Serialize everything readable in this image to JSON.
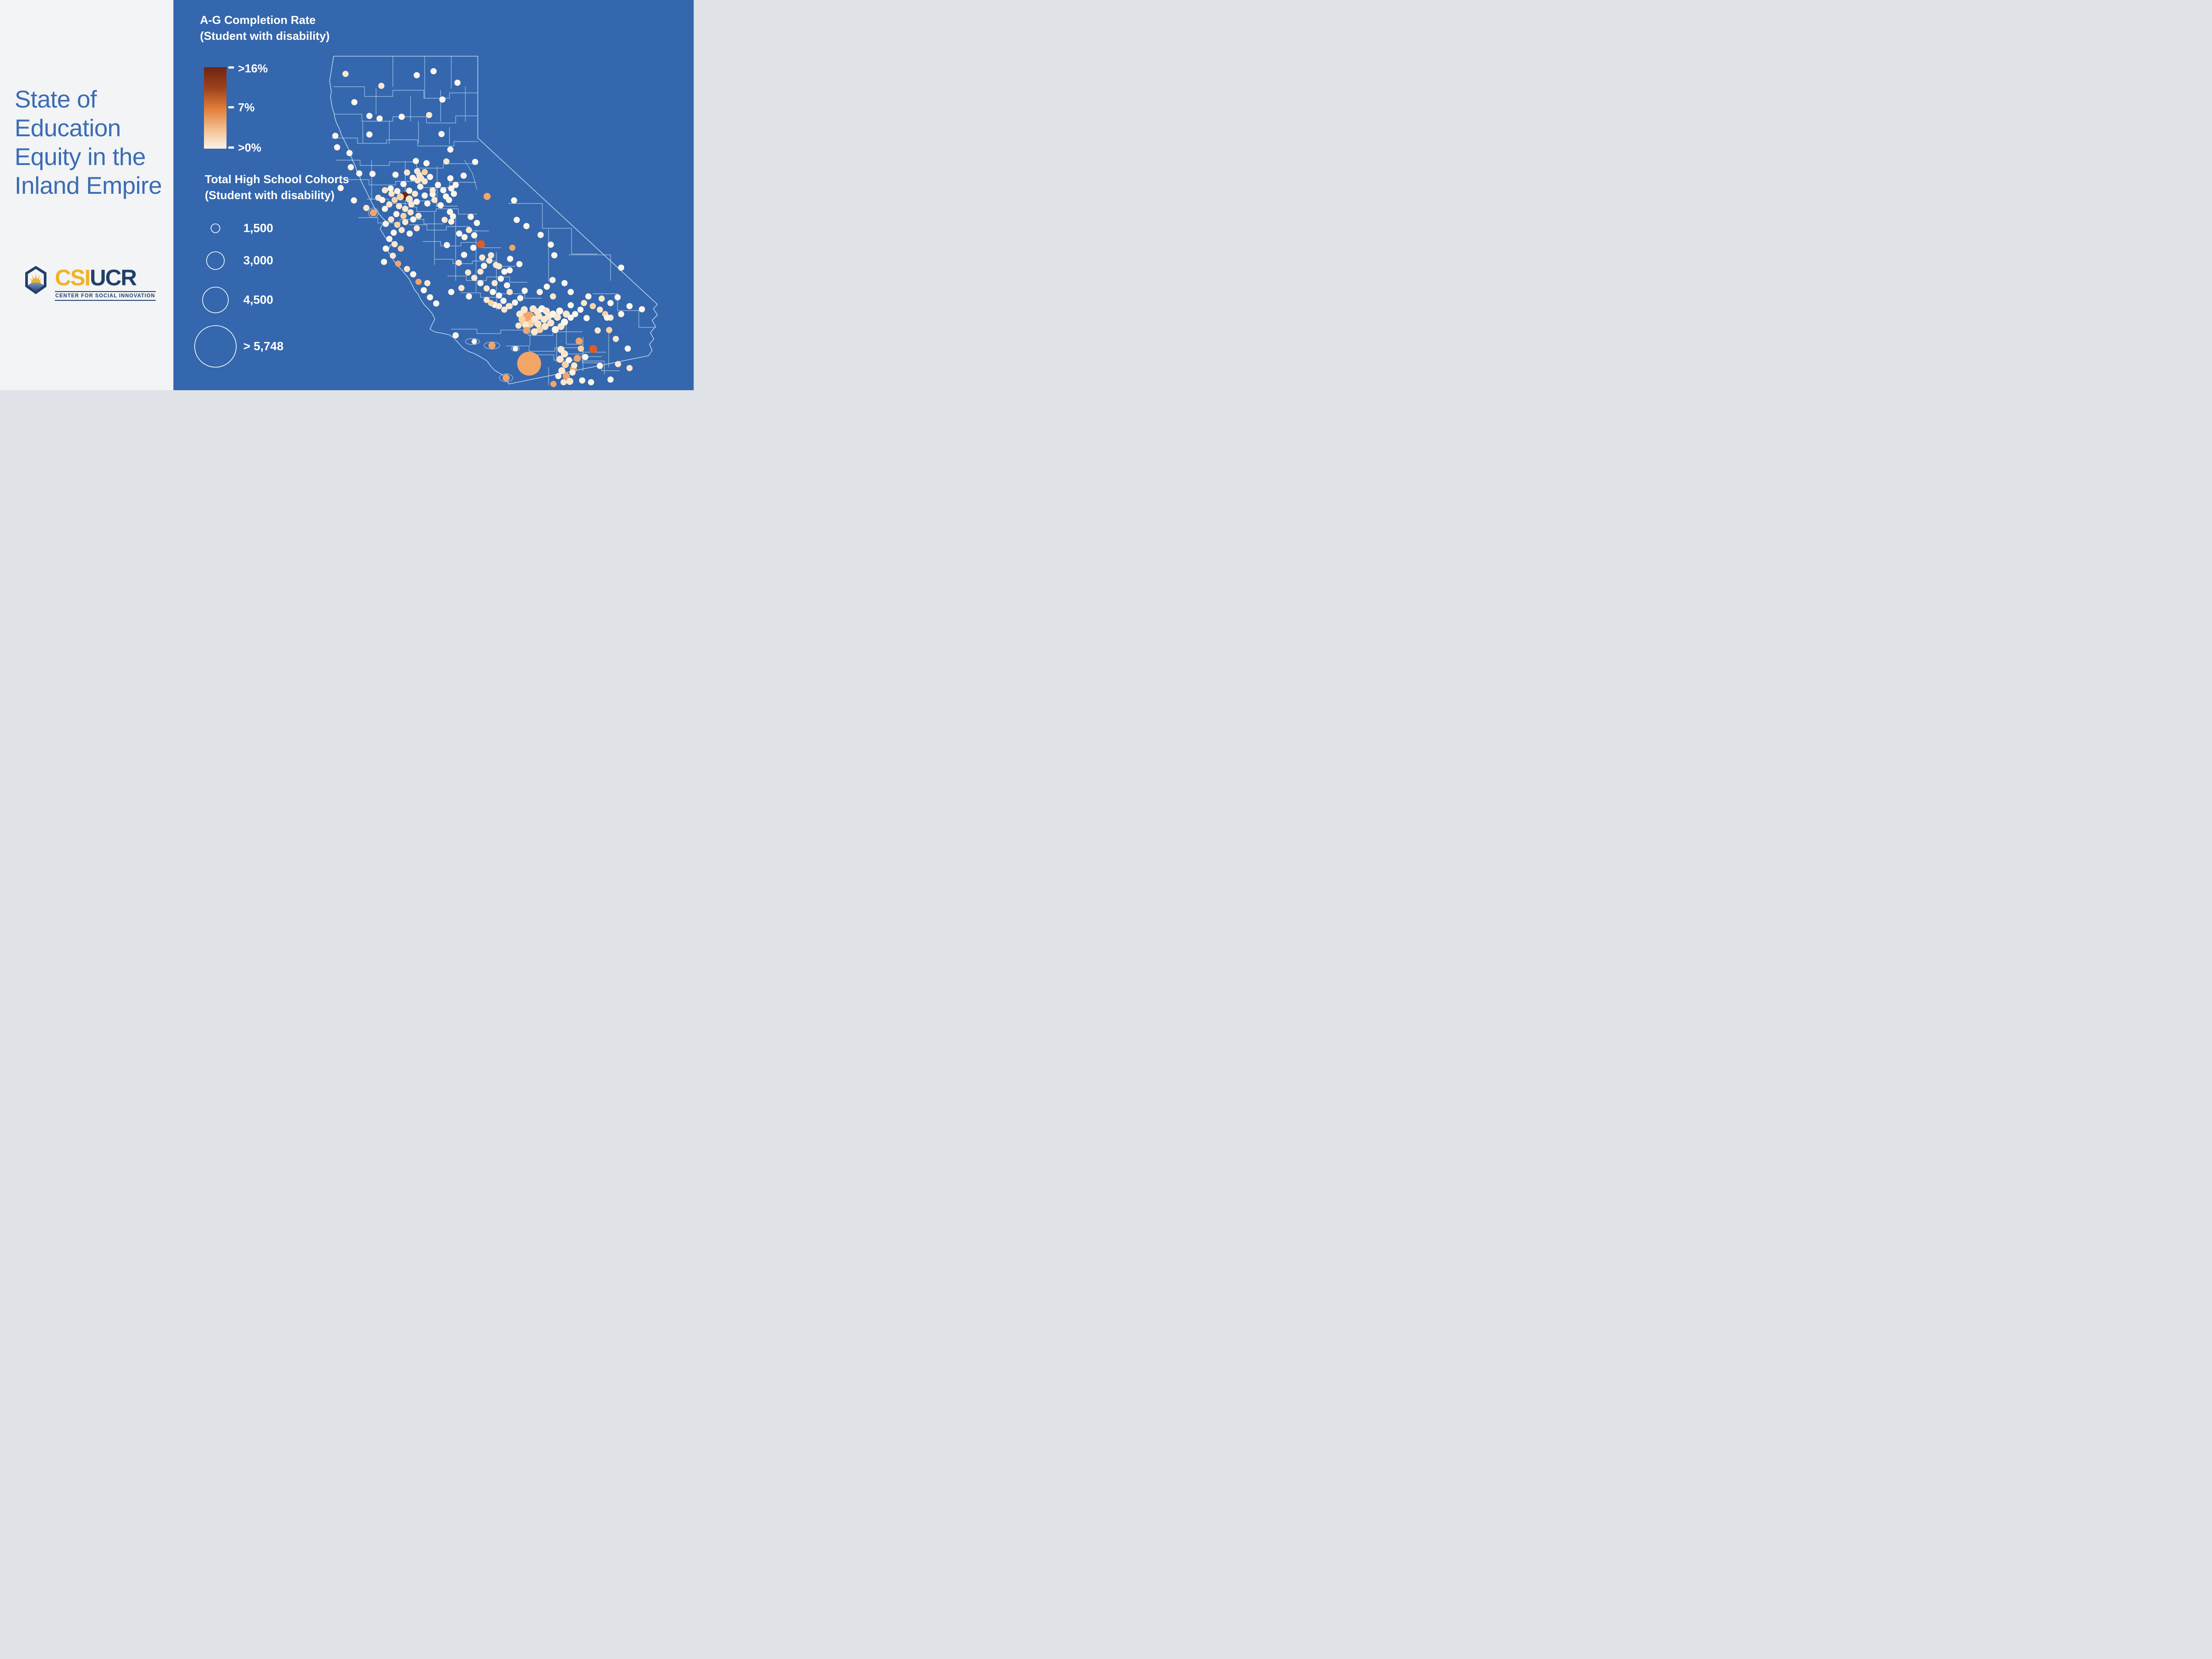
{
  "left_panel": {
    "title_lines": [
      "State of",
      "Education",
      "Equity in the",
      "Inland Empire"
    ],
    "logo": {
      "acronym_gold": "CSI",
      "acronym_navy": "UCR",
      "subtitle": "CENTER FOR SOCIAL INNOVATION"
    }
  },
  "legend_rate": {
    "title_line1": "A-G Completion Rate",
    "title_line2": "(Student with disability)",
    "tick_labels": [
      ">16%",
      "7%",
      ">0%"
    ],
    "gradient_stops": [
      "#6f2412",
      "#9c401b",
      "#e07b35",
      "#f3bc8a",
      "#fdf3e6"
    ]
  },
  "legend_size": {
    "title_line1": "Total High School Cohorts",
    "title_line2": "(Student with disability)",
    "items": [
      {
        "label": "1,500",
        "r": 10
      },
      {
        "label": "3,000",
        "r": 20
      },
      {
        "label": "4,500",
        "r": 29
      },
      {
        "label": "> 5,748",
        "r": 47
      }
    ]
  },
  "colors": {
    "left_bg": "#f2f4f5",
    "map_bg": "#3467ad",
    "title_text": "#3b6cb5",
    "boundary_line": "#a6c6e7",
    "legend_text": "#ffffff",
    "logo_gold": "#f0b325",
    "logo_navy": "#223f6a"
  },
  "map": {
    "dot_colors": {
      "w": "#fdf6ec",
      "c": "#fbe7d0",
      "p": "#f8d3a8",
      "o": "#f3a568",
      "O": "#e25c24",
      "m": "#6f2412"
    },
    "dots": [
      [
        61,
        67,
        7,
        "c"
      ],
      [
        142,
        94,
        7,
        "c"
      ],
      [
        222,
        70,
        7,
        "w"
      ],
      [
        260,
        61,
        7,
        "w"
      ],
      [
        314,
        87,
        7,
        "w"
      ],
      [
        280,
        125,
        7,
        "w"
      ],
      [
        81,
        131,
        7,
        "w"
      ],
      [
        115,
        162,
        7,
        "w"
      ],
      [
        138,
        168,
        7,
        "w"
      ],
      [
        188,
        164,
        7,
        "w"
      ],
      [
        250,
        160,
        7,
        "c"
      ],
      [
        278,
        203,
        7,
        "w"
      ],
      [
        115,
        204,
        7,
        "w"
      ],
      [
        38,
        207,
        7,
        "w"
      ],
      [
        42,
        233,
        7,
        "w"
      ],
      [
        70,
        246,
        7,
        "w"
      ],
      [
        220,
        264,
        7,
        "w"
      ],
      [
        244,
        269,
        7,
        "w"
      ],
      [
        289,
        265,
        7,
        "c"
      ],
      [
        354,
        266,
        7,
        "w"
      ],
      [
        328,
        297,
        7,
        "w"
      ],
      [
        298,
        238,
        7,
        "w"
      ],
      [
        73,
        278,
        7,
        "w"
      ],
      [
        92,
        292,
        7,
        "w"
      ],
      [
        122,
        293,
        7,
        "w"
      ],
      [
        174,
        295,
        7,
        "w"
      ],
      [
        223,
        287,
        7,
        "c"
      ],
      [
        224,
        308,
        7,
        "c"
      ],
      [
        258,
        339,
        7,
        "w"
      ],
      [
        192,
        316,
        7,
        "w"
      ],
      [
        205,
        331,
        7,
        "w"
      ],
      [
        163,
        326,
        7,
        "w"
      ],
      [
        135,
        347,
        7,
        "c"
      ],
      [
        108,
        370,
        7,
        "c"
      ],
      [
        80,
        353,
        7,
        "w"
      ],
      [
        50,
        325,
        7,
        "w"
      ],
      [
        298,
        303,
        7,
        "w"
      ],
      [
        310,
        318,
        7,
        "w"
      ],
      [
        381,
        344,
        8,
        "o"
      ],
      [
        442,
        353,
        7,
        "w"
      ],
      [
        448,
        397,
        7,
        "w"
      ],
      [
        470,
        411,
        7,
        "w"
      ],
      [
        502,
        431,
        7,
        "w"
      ],
      [
        525,
        453,
        7,
        "w"
      ],
      [
        533,
        477,
        7,
        "w"
      ],
      [
        529,
        533,
        7,
        "w"
      ],
      [
        684,
        505,
        7,
        "w"
      ],
      [
        200,
        290,
        7,
        "c"
      ],
      [
        213,
        302,
        7,
        "w"
      ],
      [
        228,
        296,
        7,
        "c"
      ],
      [
        240,
        289,
        7,
        "p"
      ],
      [
        240,
        310,
        7,
        "c"
      ],
      [
        252,
        300,
        7,
        "w"
      ],
      [
        230,
        322,
        7,
        "w"
      ],
      [
        218,
        338,
        7,
        "c"
      ],
      [
        240,
        342,
        7,
        "w"
      ],
      [
        258,
        330,
        7,
        "c"
      ],
      [
        270,
        318,
        7,
        "w"
      ],
      [
        282,
        330,
        7,
        "w"
      ],
      [
        262,
        352,
        7,
        "c"
      ],
      [
        246,
        360,
        7,
        "w"
      ],
      [
        276,
        364,
        7,
        "w"
      ],
      [
        295,
        352,
        7,
        "w"
      ],
      [
        306,
        338,
        7,
        "w"
      ],
      [
        232,
        303,
        7,
        "c"
      ],
      [
        288,
        344,
        7,
        "w"
      ],
      [
        300,
        326,
        7,
        "w"
      ],
      [
        150,
        330,
        7,
        "c"
      ],
      [
        165,
        338,
        7,
        "c"
      ],
      [
        178,
        332,
        7,
        "w"
      ],
      [
        185,
        345,
        8,
        "p"
      ],
      [
        205,
        350,
        8,
        "c"
      ],
      [
        172,
        352,
        7,
        "p"
      ],
      [
        160,
        362,
        7,
        "c"
      ],
      [
        150,
        372,
        7,
        "w"
      ],
      [
        182,
        366,
        7,
        "c"
      ],
      [
        196,
        372,
        7,
        "c"
      ],
      [
        210,
        362,
        7,
        "c"
      ],
      [
        222,
        356,
        7,
        "w"
      ],
      [
        208,
        380,
        7,
        "c"
      ],
      [
        192,
        388,
        7,
        "p"
      ],
      [
        176,
        384,
        7,
        "w"
      ],
      [
        164,
        396,
        7,
        "c"
      ],
      [
        152,
        406,
        7,
        "w"
      ],
      [
        178,
        408,
        7,
        "p"
      ],
      [
        196,
        402,
        7,
        "c"
      ],
      [
        214,
        396,
        7,
        "w"
      ],
      [
        226,
        388,
        7,
        "c"
      ],
      [
        188,
        420,
        7,
        "c"
      ],
      [
        170,
        426,
        7,
        "w"
      ],
      [
        206,
        428,
        7,
        "w"
      ],
      [
        222,
        416,
        7,
        "c"
      ],
      [
        144,
        352,
        7,
        "w"
      ],
      [
        195,
        343,
        9,
        "m"
      ],
      [
        124,
        381,
        8,
        "o"
      ],
      [
        160,
        440,
        7,
        "w"
      ],
      [
        172,
        452,
        7,
        "c"
      ],
      [
        152,
        462,
        7,
        "w"
      ],
      [
        186,
        462,
        7,
        "p"
      ],
      [
        168,
        478,
        7,
        "c"
      ],
      [
        148,
        492,
        7,
        "w"
      ],
      [
        180,
        496,
        7,
        "o"
      ],
      [
        200,
        508,
        7,
        "c"
      ],
      [
        214,
        520,
        7,
        "w"
      ],
      [
        226,
        537,
        7,
        "o"
      ],
      [
        246,
        540,
        7,
        "c"
      ],
      [
        238,
        556,
        7,
        "w"
      ],
      [
        252,
        572,
        7,
        "w"
      ],
      [
        266,
        586,
        7,
        "w"
      ],
      [
        300,
        560,
        7,
        "w"
      ],
      [
        323,
        551,
        7,
        "c"
      ],
      [
        340,
        570,
        7,
        "w"
      ],
      [
        290,
        454,
        7,
        "w"
      ],
      [
        285,
        397,
        7,
        "c"
      ],
      [
        300,
        401,
        7,
        "w"
      ],
      [
        304,
        389,
        7,
        "w"
      ],
      [
        297,
        379,
        7,
        "w"
      ],
      [
        317,
        494,
        7,
        "c"
      ],
      [
        329,
        476,
        7,
        "w"
      ],
      [
        350,
        460,
        7,
        "w"
      ],
      [
        366,
        514,
        7,
        "c"
      ],
      [
        370,
        482,
        7,
        "c"
      ],
      [
        386,
        489,
        7,
        "c"
      ],
      [
        390,
        477,
        7,
        "c"
      ],
      [
        401,
        499,
        7,
        "c"
      ],
      [
        408,
        502,
        7,
        "c"
      ],
      [
        420,
        514,
        7,
        "w"
      ],
      [
        374,
        501,
        7,
        "w"
      ],
      [
        367,
        452,
        9,
        "O"
      ],
      [
        352,
        432,
        7,
        "w"
      ],
      [
        340,
        420,
        7,
        "c"
      ],
      [
        330,
        436,
        7,
        "w"
      ],
      [
        318,
        428,
        7,
        "w"
      ],
      [
        344,
        390,
        7,
        "w"
      ],
      [
        358,
        404,
        7,
        "w"
      ],
      [
        338,
        516,
        7,
        "c"
      ],
      [
        352,
        528,
        7,
        "c"
      ],
      [
        366,
        540,
        7,
        "w"
      ],
      [
        380,
        552,
        7,
        "c"
      ],
      [
        394,
        560,
        7,
        "w"
      ],
      [
        408,
        568,
        7,
        "w"
      ],
      [
        398,
        540,
        7,
        "c"
      ],
      [
        412,
        530,
        7,
        "w"
      ],
      [
        426,
        545,
        7,
        "w"
      ],
      [
        432,
        560,
        7,
        "c"
      ],
      [
        418,
        580,
        7,
        "w"
      ],
      [
        430,
        592,
        7,
        "c"
      ],
      [
        444,
        584,
        7,
        "w"
      ],
      [
        456,
        574,
        7,
        "w"
      ],
      [
        438,
        460,
        7,
        "o"
      ],
      [
        454,
        497,
        7,
        "w"
      ],
      [
        433,
        485,
        7,
        "w"
      ],
      [
        432,
        511,
        7,
        "w"
      ],
      [
        466,
        557,
        7,
        "w"
      ],
      [
        570,
        590,
        7,
        "w"
      ],
      [
        570,
        560,
        7,
        "w"
      ],
      [
        556,
        540,
        7,
        "w"
      ],
      [
        530,
        570,
        7,
        "c"
      ],
      [
        500,
        560,
        7,
        "w"
      ],
      [
        516,
        548,
        7,
        "w"
      ],
      [
        610,
        570,
        7,
        "w"
      ],
      [
        398,
        589,
        7,
        "w"
      ],
      [
        408,
        592,
        7,
        "c"
      ],
      [
        420,
        600,
        7,
        "c"
      ],
      [
        432,
        592,
        7,
        "c"
      ],
      [
        390,
        585,
        7,
        "p"
      ],
      [
        380,
        578,
        7,
        "c"
      ],
      [
        455,
        610,
        8,
        "c"
      ],
      [
        465,
        600,
        8,
        "c"
      ],
      [
        473,
        623,
        19,
        "o"
      ],
      [
        485,
        598,
        8,
        "c"
      ],
      [
        495,
        605,
        8,
        "c"
      ],
      [
        505,
        598,
        8,
        "w"
      ],
      [
        515,
        603,
        8,
        "c"
      ],
      [
        498,
        615,
        8,
        "c"
      ],
      [
        488,
        622,
        8,
        "c"
      ],
      [
        478,
        632,
        8,
        "p"
      ],
      [
        468,
        634,
        8,
        "c"
      ],
      [
        510,
        622,
        8,
        "c"
      ],
      [
        520,
        615,
        8,
        "c"
      ],
      [
        530,
        610,
        8,
        "w"
      ],
      [
        540,
        617,
        8,
        "c"
      ],
      [
        525,
        630,
        8,
        "c"
      ],
      [
        512,
        638,
        8,
        "c"
      ],
      [
        500,
        645,
        8,
        "p"
      ],
      [
        488,
        650,
        8,
        "c"
      ],
      [
        535,
        645,
        8,
        "w"
      ],
      [
        548,
        638,
        8,
        "c"
      ],
      [
        556,
        628,
        8,
        "w"
      ],
      [
        545,
        603,
        8,
        "w"
      ],
      [
        560,
        610,
        8,
        "c"
      ],
      [
        570,
        618,
        7,
        "w"
      ],
      [
        580,
        610,
        7,
        "w"
      ],
      [
        470,
        647,
        8,
        "o"
      ],
      [
        460,
        622,
        8,
        "p"
      ],
      [
        452,
        636,
        7,
        "c"
      ],
      [
        496,
        632,
        8,
        "c"
      ],
      [
        592,
        600,
        7,
        "w"
      ],
      [
        600,
        585,
        7,
        "c"
      ],
      [
        620,
        592,
        7,
        "p"
      ],
      [
        636,
        600,
        7,
        "c"
      ],
      [
        648,
        610,
        7,
        "p"
      ],
      [
        660,
        618,
        7,
        "c"
      ],
      [
        684,
        610,
        7,
        "w"
      ],
      [
        703,
        592,
        7,
        "w"
      ],
      [
        660,
        585,
        7,
        "w"
      ],
      [
        676,
        572,
        7,
        "w"
      ],
      [
        640,
        575,
        7,
        "c"
      ],
      [
        731,
        599,
        7,
        "w"
      ],
      [
        606,
        619,
        7,
        "w"
      ],
      [
        652,
        618,
        7,
        "w"
      ],
      [
        631,
        647,
        7,
        "c"
      ],
      [
        657,
        646,
        7,
        "p"
      ],
      [
        672,
        666,
        7,
        "c"
      ],
      [
        699,
        688,
        7,
        "w"
      ],
      [
        603,
        707,
        7,
        "w"
      ],
      [
        636,
        727,
        7,
        "w"
      ],
      [
        677,
        723,
        7,
        "c"
      ],
      [
        703,
        732,
        7,
        "c"
      ],
      [
        589,
        671,
        8,
        "o"
      ],
      [
        593,
        688,
        7,
        "p"
      ],
      [
        585,
        710,
        8,
        "o"
      ],
      [
        576,
        734,
        8,
        "o"
      ],
      [
        621,
        689,
        9,
        "O"
      ],
      [
        548,
        690,
        8,
        "c"
      ],
      [
        556,
        700,
        8,
        "c"
      ],
      [
        546,
        712,
        8,
        "c"
      ],
      [
        558,
        724,
        8,
        "p"
      ],
      [
        550,
        738,
        8,
        "c"
      ],
      [
        560,
        750,
        8,
        "o"
      ],
      [
        568,
        762,
        8,
        "c"
      ],
      [
        574,
        742,
        7,
        "w"
      ],
      [
        578,
        726,
        7,
        "c"
      ],
      [
        566,
        714,
        7,
        "w"
      ],
      [
        554,
        764,
        7,
        "c"
      ],
      [
        542,
        750,
        7,
        "w"
      ],
      [
        531,
        768,
        7,
        "o"
      ],
      [
        596,
        760,
        7,
        "w"
      ],
      [
        616,
        764,
        7,
        "w"
      ],
      [
        660,
        758,
        7,
        "w"
      ],
      [
        352,
        672,
        6,
        "w"
      ],
      [
        392,
        681,
        8,
        "o"
      ],
      [
        424,
        754,
        8,
        "o"
      ],
      [
        445,
        688,
        6,
        "w"
      ],
      [
        310,
        658,
        7,
        "w"
      ],
      [
        476,
        722,
        27,
        "o"
      ]
    ]
  }
}
